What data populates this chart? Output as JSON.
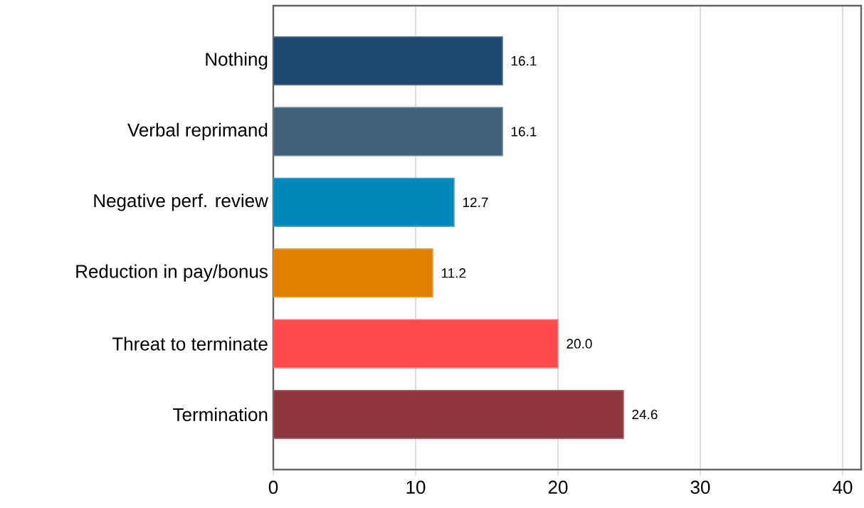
{
  "chart_data": {
    "type": "bar",
    "orientation": "horizontal",
    "categories": [
      "Nothing",
      "Verbal reprimand",
      "Negative perf. review",
      "Reduction in pay/bonus",
      "Threat to terminate",
      "Termination"
    ],
    "values": [
      16.1,
      16.1,
      12.7,
      11.2,
      20.0,
      24.6
    ],
    "value_labels": [
      "16.1",
      "16.1",
      "12.7",
      "11.2",
      "20.0",
      "24.6"
    ],
    "colors": [
      "#1f4870",
      "#3f6079",
      "#0088bb",
      "#e07f00",
      "#ff4a4c",
      "#8e353d"
    ],
    "xlim": [
      0,
      41.3
    ],
    "xticks": [
      0,
      10,
      20,
      30,
      40
    ],
    "grid": "x"
  }
}
